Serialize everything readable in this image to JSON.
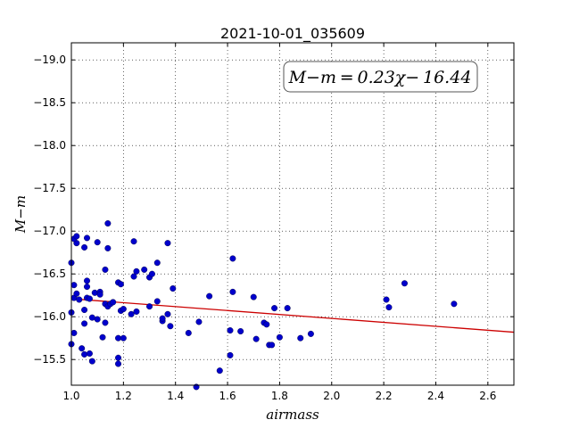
{
  "chart_data": {
    "type": "scatter",
    "title": "2021-10-01_035609",
    "xlabel": "airmass",
    "ylabel": "M−m",
    "xlim": [
      1.0,
      2.7
    ],
    "ylim": [
      -19.2,
      -15.2
    ],
    "y_inverted": true,
    "grid": true,
    "x_ticks": [
      "1.0",
      "1.2",
      "1.4",
      "1.6",
      "1.8",
      "2.0",
      "2.2",
      "2.4",
      "2.6"
    ],
    "y_ticks": [
      "−15.5",
      "−16.0",
      "−16.5",
      "−17.0",
      "−17.5",
      "−18.0",
      "−18.5",
      "−19.0"
    ],
    "annotation": "M−m = 0.23χ− 16.44",
    "fit_line": {
      "slope": 0.23,
      "intercept": -16.44,
      "color": "#cc0000"
    },
    "point_color": "#0000cc",
    "points": [
      [
        1.0,
        -15.68
      ],
      [
        1.01,
        -15.81
      ],
      [
        1.0,
        -16.05
      ],
      [
        1.01,
        -16.22
      ],
      [
        1.02,
        -16.27
      ],
      [
        1.01,
        -16.37
      ],
      [
        1.0,
        -16.63
      ],
      [
        1.02,
        -16.86
      ],
      [
        1.01,
        -16.91
      ],
      [
        1.02,
        -16.94
      ],
      [
        1.03,
        -16.2
      ],
      [
        1.04,
        -15.63
      ],
      [
        1.05,
        -15.56
      ],
      [
        1.07,
        -15.57
      ],
      [
        1.08,
        -15.48
      ],
      [
        1.05,
        -15.92
      ],
      [
        1.05,
        -16.08
      ],
      [
        1.06,
        -16.22
      ],
      [
        1.07,
        -16.21
      ],
      [
        1.06,
        -16.35
      ],
      [
        1.06,
        -16.42
      ],
      [
        1.05,
        -16.81
      ],
      [
        1.06,
        -16.92
      ],
      [
        1.08,
        -15.99
      ],
      [
        1.09,
        -16.28
      ],
      [
        1.1,
        -15.97
      ],
      [
        1.11,
        -16.29
      ],
      [
        1.11,
        -16.26
      ],
      [
        1.12,
        -15.76
      ],
      [
        1.13,
        -15.93
      ],
      [
        1.13,
        -16.15
      ],
      [
        1.14,
        -16.12
      ],
      [
        1.15,
        -16.15
      ],
      [
        1.16,
        -16.17
      ],
      [
        1.13,
        -16.55
      ],
      [
        1.14,
        -16.8
      ],
      [
        1.1,
        -16.87
      ],
      [
        1.14,
        -17.09
      ],
      [
        1.18,
        -15.45
      ],
      [
        1.18,
        -15.52
      ],
      [
        1.18,
        -15.75
      ],
      [
        1.2,
        -15.75
      ],
      [
        1.19,
        -16.07
      ],
      [
        1.2,
        -16.09
      ],
      [
        1.18,
        -16.4
      ],
      [
        1.19,
        -16.38
      ],
      [
        1.23,
        -16.03
      ],
      [
        1.25,
        -16.06
      ],
      [
        1.24,
        -16.47
      ],
      [
        1.25,
        -16.53
      ],
      [
        1.28,
        -16.55
      ],
      [
        1.3,
        -16.46
      ],
      [
        1.31,
        -16.5
      ],
      [
        1.3,
        -16.12
      ],
      [
        1.33,
        -16.18
      ],
      [
        1.35,
        -15.95
      ],
      [
        1.35,
        -15.98
      ],
      [
        1.37,
        -16.03
      ],
      [
        1.38,
        -15.89
      ],
      [
        1.39,
        -16.33
      ],
      [
        1.33,
        -16.63
      ],
      [
        1.37,
        -16.86
      ],
      [
        1.24,
        -16.88
      ],
      [
        1.45,
        -15.81
      ],
      [
        1.48,
        -15.18
      ],
      [
        1.49,
        -15.94
      ],
      [
        1.53,
        -16.24
      ],
      [
        1.57,
        -15.37
      ],
      [
        1.61,
        -15.55
      ],
      [
        1.61,
        -15.84
      ],
      [
        1.65,
        -15.83
      ],
      [
        1.62,
        -16.29
      ],
      [
        1.62,
        -16.68
      ],
      [
        1.7,
        -16.23
      ],
      [
        1.71,
        -15.74
      ],
      [
        1.74,
        -15.93
      ],
      [
        1.75,
        -15.91
      ],
      [
        1.76,
        -15.67
      ],
      [
        1.77,
        -15.67
      ],
      [
        1.78,
        -16.1
      ],
      [
        1.8,
        -15.76
      ],
      [
        1.83,
        -16.1
      ],
      [
        1.88,
        -15.75
      ],
      [
        1.92,
        -15.8
      ],
      [
        2.21,
        -16.2
      ],
      [
        2.22,
        -16.11
      ],
      [
        2.28,
        -16.39
      ],
      [
        2.47,
        -16.15
      ]
    ]
  }
}
